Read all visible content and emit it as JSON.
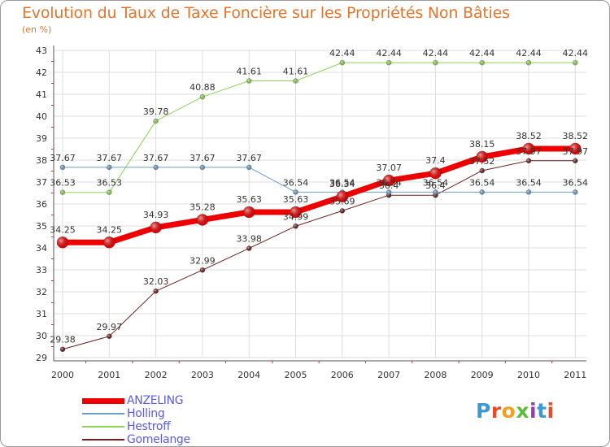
{
  "header": {
    "title": "Evolution du Taux de Taxe Foncière sur les Propriétés Non Bâties",
    "unit": "(en %)"
  },
  "brand": {
    "text": "Proxiti",
    "colors": [
      "#3a9ad8",
      "#e84b2a",
      "#f0a020",
      "#5bbd3b",
      "#9a3ab0",
      "#3a9ad8",
      "#e84b2a"
    ]
  },
  "chart_data": {
    "type": "line",
    "title": "Evolution du Taux de Taxe Foncière sur les Propriétés Non Bâties",
    "ylabel": "(en %)",
    "xlabel": "",
    "x": [
      "2000",
      "2001",
      "2002",
      "2003",
      "2004",
      "2005",
      "2006",
      "2007",
      "2008",
      "2009",
      "2010",
      "2011"
    ],
    "ylim": [
      29,
      43
    ],
    "yticks": [
      29,
      30,
      31,
      32,
      33,
      34,
      35,
      36,
      37,
      38,
      39,
      40,
      41,
      42,
      43
    ],
    "grid": true,
    "legend_position": "bottom-left",
    "series": [
      {
        "name": "Gomelange",
        "color": "#6b2020",
        "values": [
          29.38,
          29.97,
          32.03,
          32.99,
          33.98,
          34.99,
          35.69,
          36.4,
          36.4,
          37.52,
          37.97,
          37.97
        ],
        "labels": [
          "29.38",
          "29.97",
          "32.03",
          "32.99",
          "33.98",
          "34.99",
          "35.69",
          "36.4",
          "36.4",
          "37.52",
          "37.97",
          "37.97"
        ]
      },
      {
        "name": "Hestroff",
        "color": "#8ed35a",
        "values": [
          36.53,
          36.53,
          39.78,
          40.88,
          41.61,
          41.61,
          42.44,
          42.44,
          42.44,
          42.44,
          42.44,
          42.44
        ],
        "labels": [
          "36.53",
          "36.53",
          "39.78",
          "40.88",
          "41.61",
          "41.61",
          "42.44",
          "42.44",
          "42.44",
          "42.44",
          "42.44",
          "42.44"
        ]
      },
      {
        "name": "Holling",
        "color": "#6a9ec8",
        "values": [
          37.67,
          37.67,
          37.67,
          37.67,
          37.67,
          36.54,
          36.54,
          36.54,
          36.54,
          36.54,
          36.54,
          36.54
        ],
        "labels": [
          "37.67",
          "37.67",
          "37.67",
          "37.67",
          "37.67",
          "36.54",
          "36.54",
          "36.54",
          "36.54",
          "36.54",
          "36.54",
          "36.54"
        ]
      },
      {
        "name": "ANZELING",
        "color": "#ee0000",
        "values": [
          34.25,
          34.25,
          34.93,
          35.28,
          35.63,
          35.63,
          36.34,
          37.07,
          37.4,
          38.15,
          38.52,
          38.52
        ],
        "labels": [
          "34.25",
          "34.25",
          "34.93",
          "35.28",
          "35.63",
          "35.63",
          "36.34",
          "37.07",
          "37.4",
          "38.15",
          "38.52",
          "38.52"
        ]
      }
    ],
    "legend": [
      "ANZELING",
      "Holling",
      "Hestroff",
      "Gomelange"
    ]
  }
}
